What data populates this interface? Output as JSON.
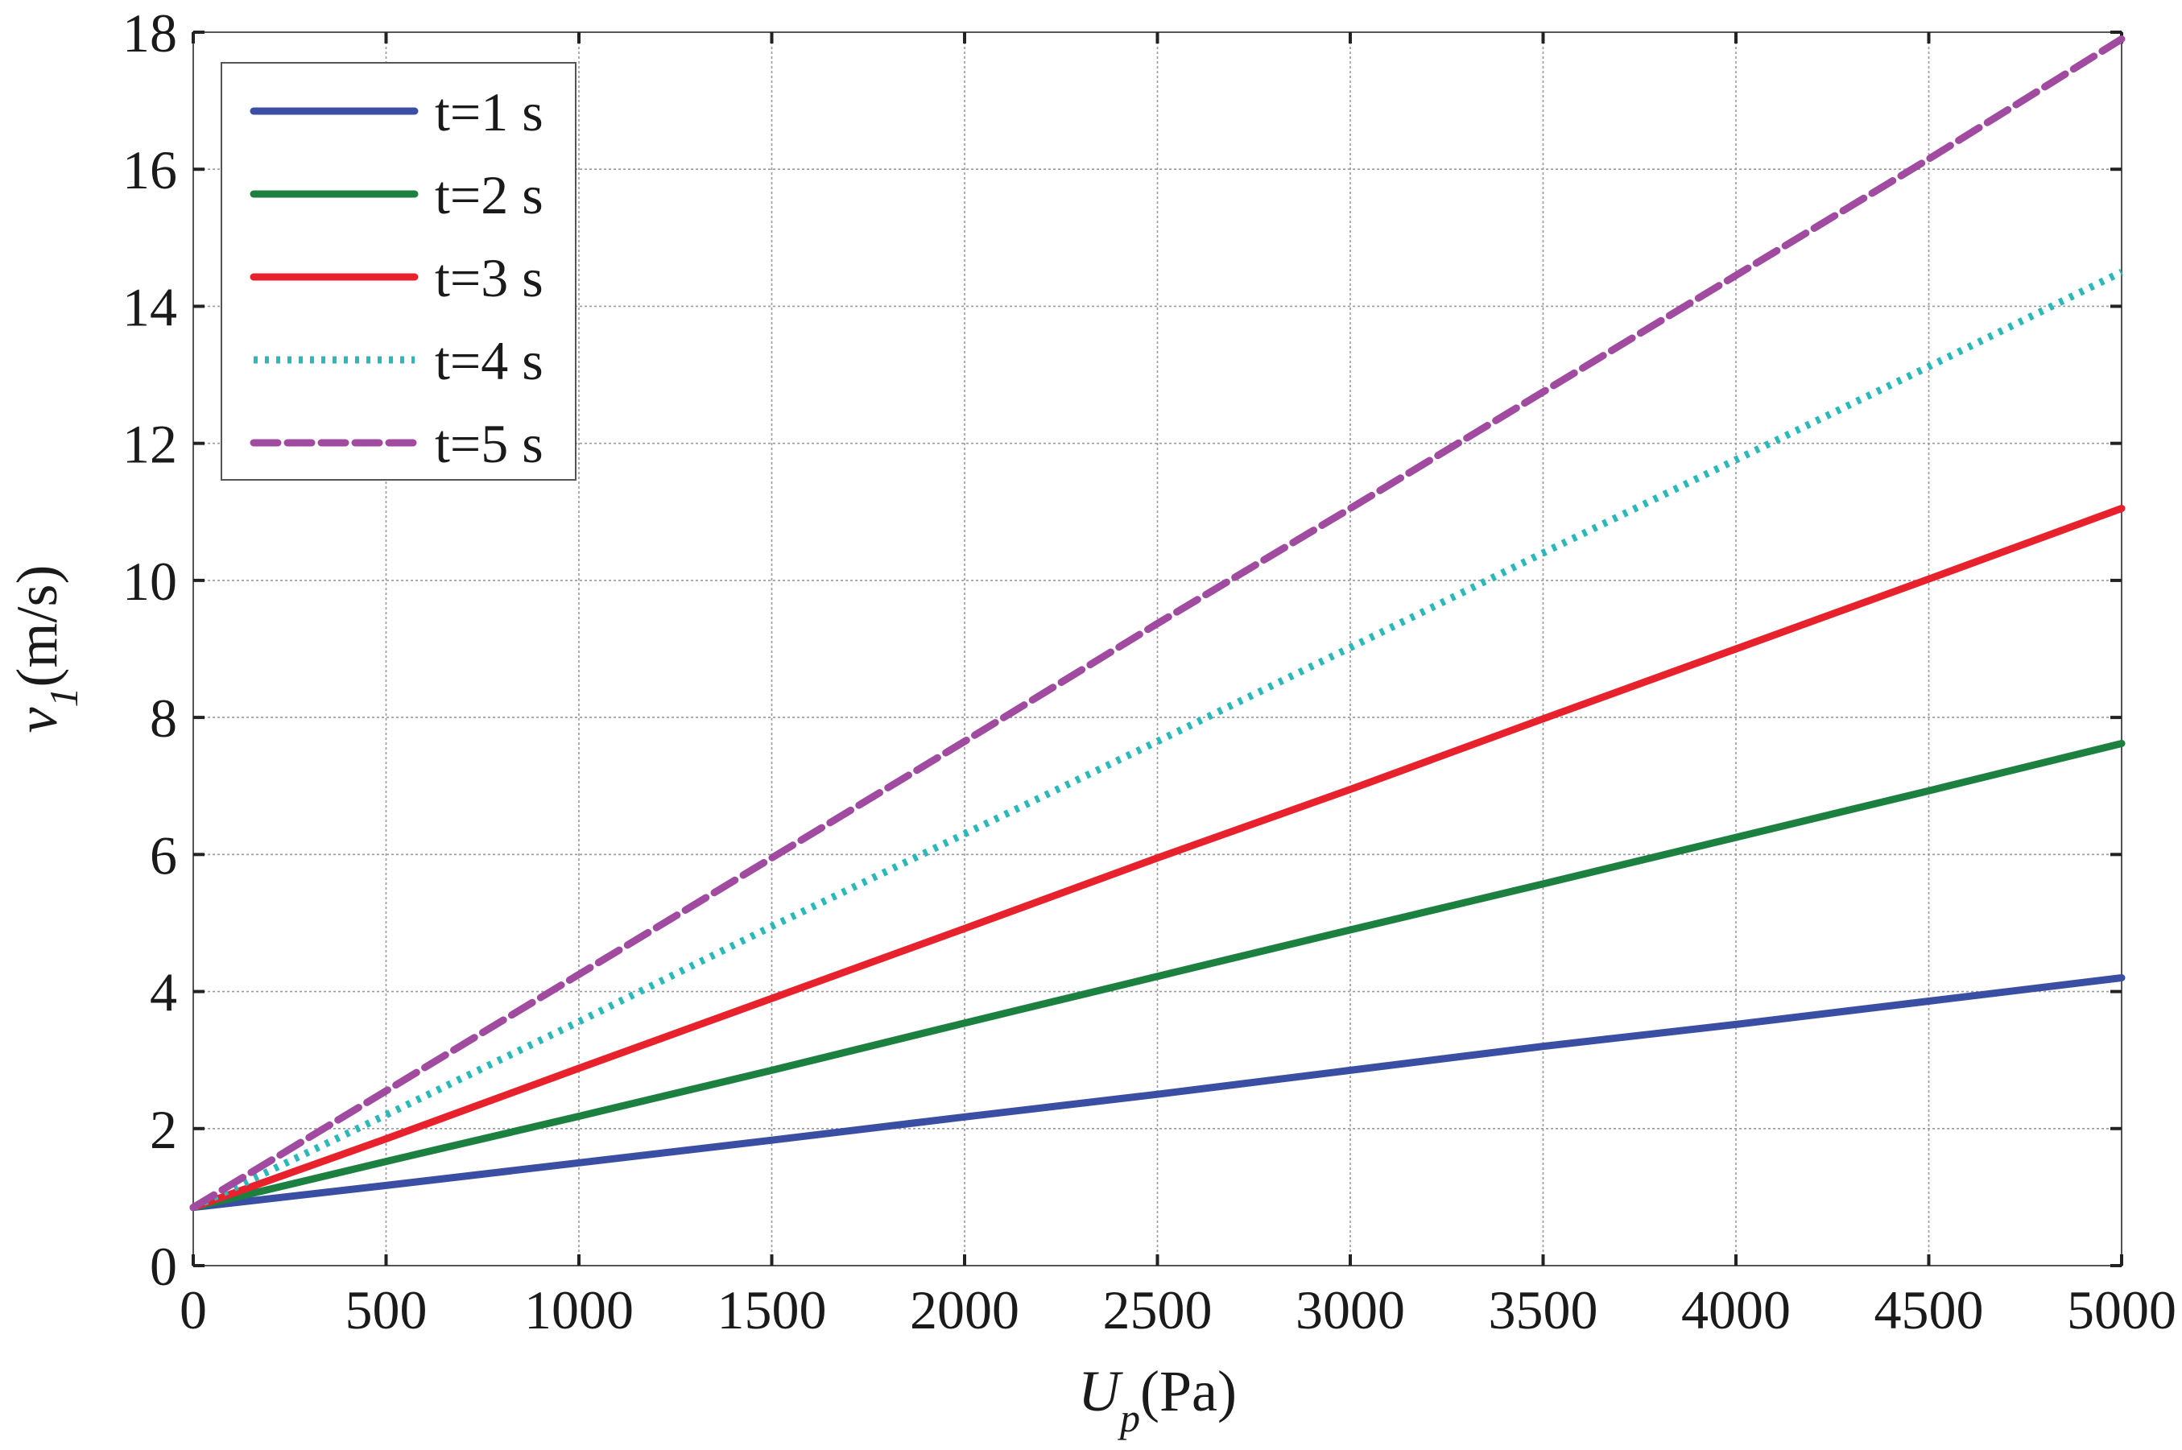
{
  "chart_data": {
    "type": "line",
    "title": "",
    "xlabel": {
      "symbol": "U",
      "subscript": "p",
      "unit": "(Pa)"
    },
    "ylabel": {
      "symbol": "v",
      "subscript": "1",
      "unit": "(m/s)"
    },
    "xlim": [
      0,
      5000
    ],
    "ylim": [
      0,
      18
    ],
    "xticks": [
      0,
      500,
      1000,
      1500,
      2000,
      2500,
      3000,
      3500,
      4000,
      4500,
      5000
    ],
    "yticks": [
      0,
      2,
      4,
      6,
      8,
      10,
      12,
      14,
      16,
      18
    ],
    "grid": true,
    "legend_position": "top-left",
    "x": [
      0,
      500,
      1000,
      1500,
      2000,
      2500,
      3000,
      3500,
      4000,
      4500,
      5000
    ],
    "series": [
      {
        "name": "t=1 s",
        "color": "#3a4fa3",
        "style": "solid",
        "values": [
          0.85,
          1.17,
          1.5,
          1.83,
          2.17,
          2.5,
          2.85,
          3.2,
          3.52,
          3.86,
          4.2
        ]
      },
      {
        "name": "t=2 s",
        "color": "#1c8040",
        "style": "solid",
        "values": [
          0.85,
          1.52,
          2.18,
          2.85,
          3.54,
          4.22,
          4.9,
          5.57,
          6.25,
          6.93,
          7.62
        ]
      },
      {
        "name": "t=3 s",
        "color": "#e8222c",
        "style": "solid",
        "values": [
          0.85,
          1.85,
          2.88,
          3.9,
          4.92,
          5.95,
          6.95,
          7.98,
          9.0,
          10.02,
          11.05
        ]
      },
      {
        "name": "t=4 s",
        "color": "#2ab8b8",
        "style": "dotted",
        "values": [
          0.85,
          2.2,
          3.56,
          4.95,
          6.3,
          7.65,
          9.02,
          10.4,
          11.76,
          13.12,
          14.5
        ]
      },
      {
        "name": "t=5 s",
        "color": "#a04aa0",
        "style": "dashed",
        "values": [
          0.85,
          2.55,
          4.25,
          5.95,
          7.65,
          9.37,
          11.05,
          12.75,
          14.45,
          16.15,
          17.9
        ]
      }
    ]
  }
}
